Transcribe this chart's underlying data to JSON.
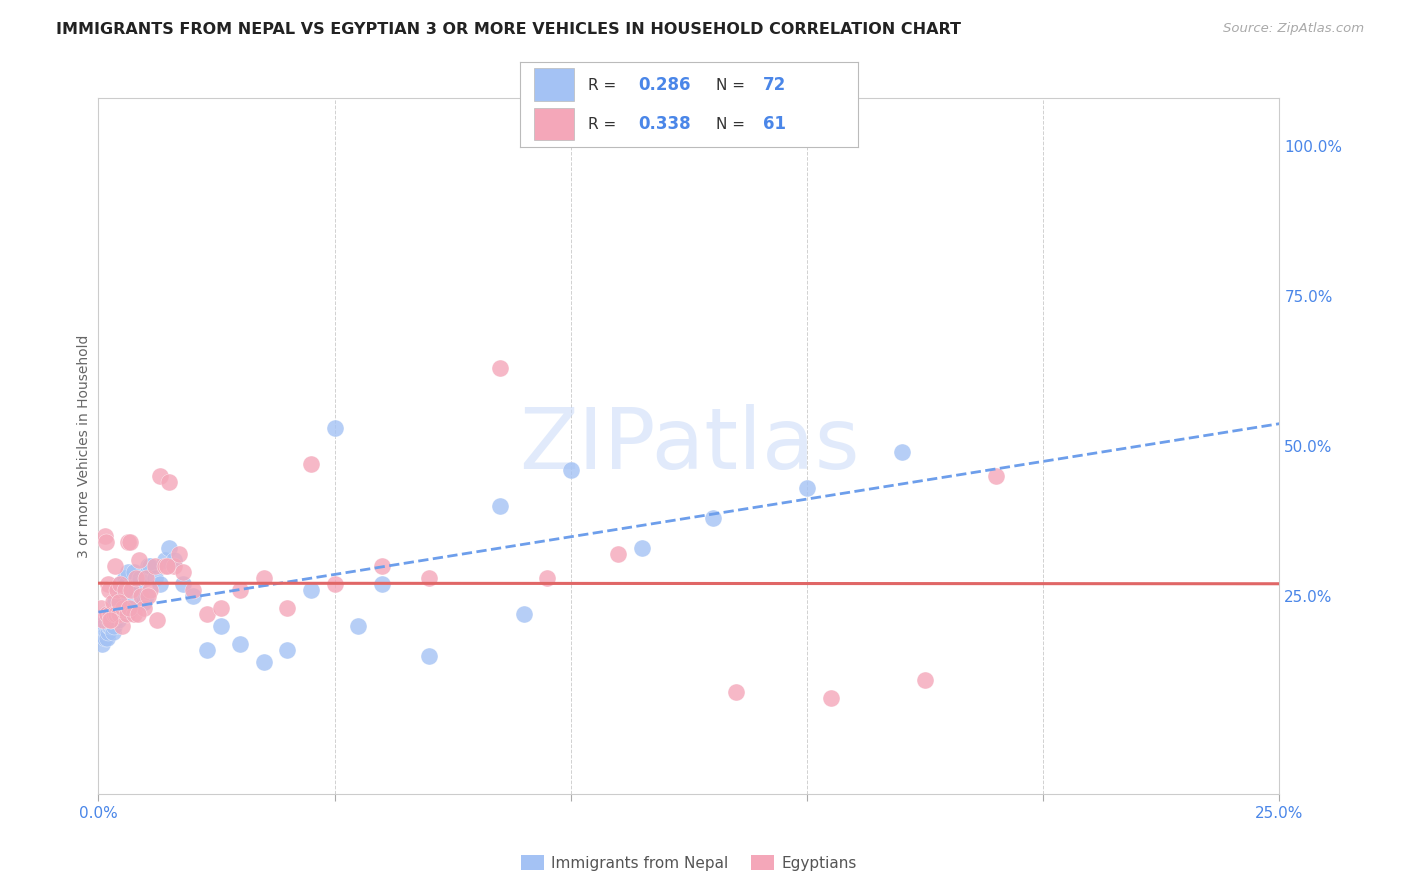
{
  "title": "IMMIGRANTS FROM NEPAL VS EGYPTIAN 3 OR MORE VEHICLES IN HOUSEHOLD CORRELATION CHART",
  "source": "Source: ZipAtlas.com",
  "ylabel": "3 or more Vehicles in Household",
  "xlim": [
    0.0,
    25.0
  ],
  "ylim": [
    -8.0,
    108.0
  ],
  "nepal_R": 0.286,
  "nepal_N": 72,
  "egypt_R": 0.338,
  "egypt_N": 61,
  "nepal_color": "#a4c2f4",
  "egypt_color": "#f4a7b9",
  "nepal_line_color": "#6d9eeb",
  "egypt_line_color": "#e06666",
  "text_color": "#4a86e8",
  "label_color": "#333333",
  "watermark_text": "ZIPatlas",
  "grid_color": "#cccccc",
  "right_ytick_vals": [
    0,
    25,
    50,
    75,
    100
  ],
  "right_ytick_labels": [
    "",
    "25.0%",
    "50.0%",
    "75.0%",
    "100.0%"
  ],
  "xtick_vals": [
    0,
    5,
    10,
    15,
    20,
    25
  ],
  "xtick_labels": [
    "0.0%",
    "",
    "",
    "",
    "",
    "25.0%"
  ],
  "nepal_x": [
    0.06,
    0.08,
    0.1,
    0.12,
    0.13,
    0.15,
    0.16,
    0.18,
    0.19,
    0.2,
    0.21,
    0.22,
    0.23,
    0.24,
    0.25,
    0.26,
    0.27,
    0.28,
    0.3,
    0.31,
    0.33,
    0.35,
    0.36,
    0.38,
    0.4,
    0.42,
    0.44,
    0.46,
    0.48,
    0.5,
    0.52,
    0.54,
    0.56,
    0.58,
    0.6,
    0.63,
    0.66,
    0.7,
    0.73,
    0.76,
    0.8,
    0.84,
    0.88,
    0.92,
    0.96,
    1.0,
    1.05,
    1.1,
    1.2,
    1.3,
    1.4,
    1.5,
    1.6,
    1.8,
    2.0,
    2.3,
    2.6,
    3.0,
    3.5,
    4.0,
    4.5,
    5.0,
    5.5,
    6.0,
    7.0,
    8.5,
    10.0,
    11.5,
    13.0,
    15.0,
    17.0,
    9.0
  ],
  "nepal_y": [
    20.0,
    17.0,
    21.0,
    20.0,
    18.0,
    19.0,
    22.0,
    20.0,
    18.0,
    19.0,
    21.0,
    20.0,
    21.0,
    20.0,
    22.0,
    21.0,
    22.0,
    20.0,
    19.0,
    22.0,
    20.0,
    24.0,
    21.0,
    22.0,
    23.0,
    21.0,
    22.0,
    27.0,
    26.0,
    22.0,
    25.0,
    27.0,
    28.0,
    27.0,
    25.0,
    29.0,
    26.0,
    23.0,
    26.0,
    29.0,
    26.0,
    27.0,
    28.0,
    25.0,
    24.0,
    25.0,
    30.0,
    30.0,
    28.0,
    27.0,
    31.0,
    33.0,
    31.0,
    27.0,
    25.0,
    16.0,
    20.0,
    17.0,
    14.0,
    16.0,
    26.0,
    53.0,
    20.0,
    27.0,
    15.0,
    40.0,
    46.0,
    33.0,
    38.0,
    43.0,
    49.0,
    22.0
  ],
  "egypt_x": [
    0.06,
    0.1,
    0.13,
    0.16,
    0.18,
    0.2,
    0.22,
    0.25,
    0.27,
    0.3,
    0.32,
    0.35,
    0.37,
    0.4,
    0.43,
    0.46,
    0.5,
    0.53,
    0.57,
    0.6,
    0.63,
    0.67,
    0.7,
    0.75,
    0.8,
    0.86,
    0.9,
    0.96,
    1.0,
    1.1,
    1.2,
    1.3,
    1.4,
    1.5,
    1.6,
    1.7,
    1.8,
    2.0,
    2.3,
    2.6,
    3.0,
    3.5,
    4.0,
    4.5,
    5.0,
    6.0,
    7.0,
    8.5,
    9.5,
    11.0,
    13.5,
    15.5,
    17.5,
    19.0,
    0.24,
    0.44,
    0.64,
    0.84,
    1.05,
    1.25,
    1.45
  ],
  "egypt_y": [
    23.0,
    21.0,
    35.0,
    34.0,
    22.0,
    27.0,
    26.0,
    22.0,
    21.0,
    24.0,
    22.0,
    30.0,
    22.0,
    26.0,
    22.0,
    27.0,
    20.0,
    23.0,
    26.0,
    22.0,
    34.0,
    34.0,
    26.0,
    22.0,
    28.0,
    31.0,
    25.0,
    23.0,
    28.0,
    26.0,
    30.0,
    45.0,
    30.0,
    44.0,
    30.0,
    32.0,
    29.0,
    26.0,
    22.0,
    23.0,
    26.0,
    28.0,
    23.0,
    47.0,
    27.0,
    30.0,
    28.0,
    63.0,
    28.0,
    32.0,
    9.0,
    8.0,
    11.0,
    45.0,
    21.0,
    24.0,
    23.0,
    22.0,
    25.0,
    21.0,
    30.0
  ]
}
